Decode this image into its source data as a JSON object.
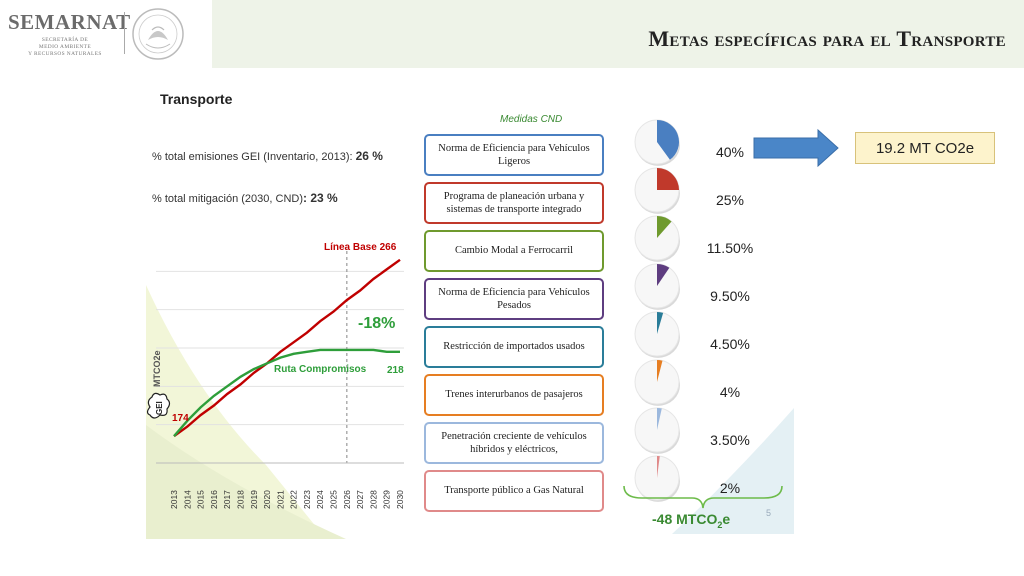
{
  "header": {
    "logo_text": "SEMARNAT",
    "logo_sub_1": "SECRETARÍA DE",
    "logo_sub_2": "MEDIO AMBIENTE",
    "logo_sub_3": "Y RECURSOS NATURALES",
    "title": "Metas específicas para el Transporte"
  },
  "left": {
    "title": "Transporte",
    "stat1_label": "% total emisiones GEI (Inventario, 2013): ",
    "stat1_value": "26 %",
    "stat2_label": "% total mitigación (2030, CND)",
    "stat2_value": ": 23 %"
  },
  "chart_data": {
    "type": "line",
    "x": [
      2013,
      2014,
      2015,
      2016,
      2017,
      2018,
      2019,
      2020,
      2021,
      2022,
      2023,
      2024,
      2025,
      2026,
      2027,
      2028,
      2029,
      2030
    ],
    "x_tick_labels": [
      "2013",
      "2014",
      "2015",
      "2016",
      "2017",
      "2018",
      "2019",
      "2020",
      "2021",
      "2022",
      "2023",
      "2024",
      "2025",
      "2026",
      "2027",
      "2028",
      "2029",
      "2030"
    ],
    "series": [
      {
        "name": "Línea Base 266",
        "color": "#c00000",
        "values": [
          174,
          179,
          185,
          190,
          196,
          201,
          207,
          212,
          218,
          223,
          228,
          234,
          239,
          245,
          250,
          256,
          261,
          266
        ]
      },
      {
        "name": "Ruta Compromisos",
        "color": "#2e9e3a",
        "values": [
          174,
          182,
          189,
          195,
          200,
          205,
          209,
          212,
          215,
          217,
          218,
          219,
          219,
          219,
          219,
          219,
          218,
          218
        ]
      }
    ],
    "ylabel": "MTCO2e",
    "ylim": [
      160,
      280
    ],
    "annotations": {
      "baseline_label": "Línea Base 266",
      "route_label": "Ruta Compromisos",
      "route_end": "218",
      "start_value": "174",
      "reduction": "-18%",
      "gei_label": "GEI"
    }
  },
  "measures": {
    "label": "Medidas CND",
    "items": [
      {
        "label": "Norma de Eficiencia para Vehículos Ligeros",
        "pct": "40%",
        "color": "#4a7fc1",
        "fraction": 0.4
      },
      {
        "label": "Programa de planeación urbana y sistemas de transporte integrado",
        "pct": "25%",
        "color": "#c0392b",
        "fraction": 0.25
      },
      {
        "label": "Cambio Modal a Ferrocarril",
        "pct": "11.50%",
        "color": "#6f9a2e",
        "fraction": 0.115
      },
      {
        "label": "Norma de Eficiencia para Vehículos Pesados",
        "pct": "9.50%",
        "color": "#5e3d80",
        "fraction": 0.095
      },
      {
        "label": "Restricción de importados usados",
        "pct": "4.50%",
        "color": "#2a7d99",
        "fraction": 0.045
      },
      {
        "label": "Trenes interurbanos de pasajeros",
        "pct": "4%",
        "color": "#e67e22",
        "fraction": 0.04
      },
      {
        "label": "Penetración creciente de vehículos híbridos y eléctricos,",
        "pct": "3.50%",
        "color": "#9cb8dd",
        "fraction": 0.035
      },
      {
        "label": "Transporte público a Gas Natural",
        "pct": "2%",
        "color": "#e08a8a",
        "fraction": 0.02
      }
    ],
    "total": "-48 MTCO",
    "total_sub": "2",
    "total_suffix": "e",
    "footer_note": "5"
  },
  "callout": {
    "text": "19.2 MT CO2e",
    "arrow_color": "#4a86c8"
  }
}
